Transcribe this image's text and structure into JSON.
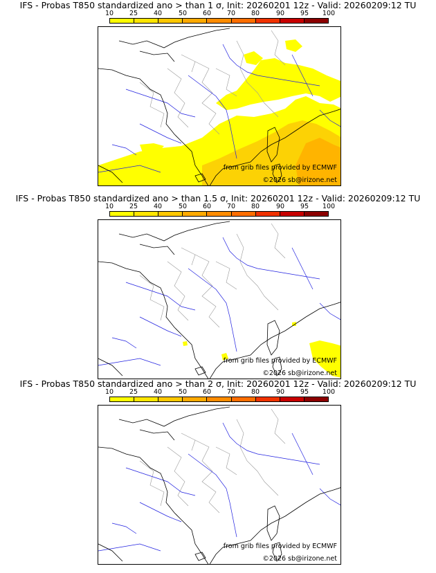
{
  "colors": {
    "scale": [
      "#ffff00",
      "#ffe600",
      "#ffc800",
      "#ffaa00",
      "#ff8c00",
      "#ff6e00",
      "#f03200",
      "#c80000",
      "#8c0000",
      "#5a0000"
    ],
    "prob_fill": "#ffff00",
    "prob_fill_mid": "#fcd205",
    "prob_fill_high": "#ffb400",
    "coast": "#000000",
    "rivers": "#2020e0",
    "borders": "#999999"
  },
  "scale_ticks": [
    "10",
    "25",
    "40",
    "50",
    "60",
    "70",
    "80",
    "90",
    "95",
    "100"
  ],
  "credits": {
    "source": "from grib files provided by ECMWF",
    "copyright": "©2026 sb@irizone.net"
  },
  "panels": [
    {
      "title": "IFS - Probas T850  standardized ano > than 1 σ, Init: 20260201 12z - Valid: 20260209:12 TU",
      "coverage": "wide"
    },
    {
      "title": "IFS - Probas T850  standardized ano > than 1.5 σ, Init: 20260201 12z - Valid: 20260209:12 TU",
      "coverage": "small"
    },
    {
      "title": "IFS - Probas T850  standardized ano > than 2 σ, Init: 20260201 12z - Valid: 20260209:12 TU",
      "coverage": "none"
    }
  ]
}
